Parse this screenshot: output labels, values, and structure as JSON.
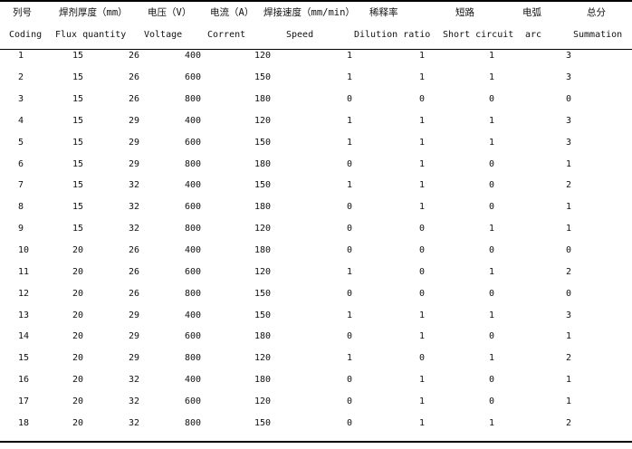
{
  "headers_cn": [
    "列号",
    "焊剂厚度（mm）",
    "电压（V）",
    "电流（A）",
    "焊接速度（mm/min）",
    "稀释率",
    "短路",
    "电弧",
    "总分"
  ],
  "headers_en": [
    "Coding",
    "Flux quantity",
    "Voltage",
    "Corrent",
    "Speed",
    "Dilution ratio",
    "Short circuit",
    "arc",
    "Summation"
  ],
  "rows": [
    [
      "1",
      "15",
      "26",
      "400",
      "120",
      "1",
      "1",
      "1",
      "3"
    ],
    [
      "2",
      "15",
      "26",
      "600",
      "150",
      "1",
      "1",
      "1",
      "3"
    ],
    [
      "3",
      "15",
      "26",
      "800",
      "180",
      "0",
      "0",
      "0",
      "0"
    ],
    [
      "4",
      "15",
      "29",
      "400",
      "120",
      "1",
      "1",
      "1",
      "3"
    ],
    [
      "5",
      "15",
      "29",
      "600",
      "150",
      "1",
      "1",
      "1",
      "3"
    ],
    [
      "6",
      "15",
      "29",
      "800",
      "180",
      "0",
      "1",
      "0",
      "1"
    ],
    [
      "7",
      "15",
      "32",
      "400",
      "150",
      "1",
      "1",
      "0",
      "2"
    ],
    [
      "8",
      "15",
      "32",
      "600",
      "180",
      "0",
      "1",
      "0",
      "1"
    ],
    [
      "9",
      "15",
      "32",
      "800",
      "120",
      "0",
      "0",
      "1",
      "1"
    ],
    [
      "10",
      "20",
      "26",
      "400",
      "180",
      "0",
      "0",
      "0",
      "0"
    ],
    [
      "11",
      "20",
      "26",
      "600",
      "120",
      "1",
      "0",
      "1",
      "2"
    ],
    [
      "12",
      "20",
      "26",
      "800",
      "150",
      "0",
      "0",
      "0",
      "0"
    ],
    [
      "13",
      "20",
      "29",
      "400",
      "150",
      "1",
      "1",
      "1",
      "3"
    ],
    [
      "14",
      "20",
      "29",
      "600",
      "180",
      "0",
      "1",
      "0",
      "1"
    ],
    [
      "15",
      "20",
      "29",
      "800",
      "120",
      "1",
      "0",
      "1",
      "2"
    ],
    [
      "16",
      "20",
      "32",
      "400",
      "180",
      "0",
      "1",
      "0",
      "1"
    ],
    [
      "17",
      "20",
      "32",
      "600",
      "120",
      "0",
      "1",
      "0",
      "1"
    ],
    [
      "18",
      "20",
      "32",
      "800",
      "150",
      "0",
      "1",
      "1",
      "2"
    ]
  ]
}
